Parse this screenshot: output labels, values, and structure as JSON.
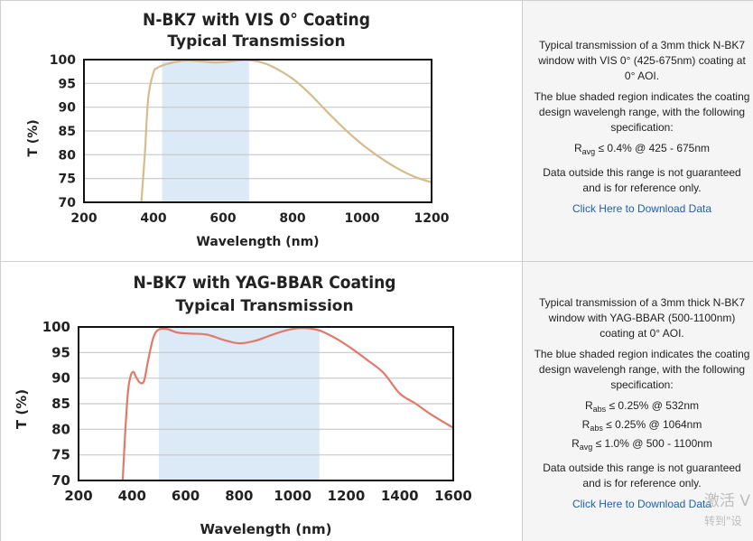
{
  "charts": [
    {
      "title_line1": "N-BK7 with VIS 0° Coating",
      "title_line2": "Typical Transmission",
      "info": {
        "para1": "Typical transmission of a 3mm thick N-BK7 window with VIS 0° (425-675nm) coating at 0° AOI.",
        "para2": "The blue shaded region indicates the coating design wavelengh range, with the following specification:",
        "specs": [
          {
            "main": "R",
            "sub": "avg",
            "rest": "≤ 0.4% @ 425 - 675nm"
          }
        ],
        "para3": "Data outside this range is not guaranteed and is for reference only.",
        "link": "Click Here to Download Data"
      }
    },
    {
      "title_line1": "N-BK7 with YAG-BBAR Coating",
      "title_line2": "Typical Transmission",
      "info": {
        "para1": "Typical transmission of a 3mm thick N-BK7 window with YAG-BBAR (500-1100nm) coating at 0° AOI.",
        "para2": "The blue shaded region indicates the coating design wavelengh range, with the following specification:",
        "specs": [
          {
            "main": "R",
            "sub": "abs",
            "rest": "≤ 0.25% @ 532nm"
          },
          {
            "main": "R",
            "sub": "abs",
            "rest": "≤ 0.25% @ 1064nm"
          },
          {
            "main": "R",
            "sub": "avg",
            "rest": "≤ 1.0% @ 500 - 1100nm"
          }
        ],
        "para3": "Data outside this range is not guaranteed and is for reference only.",
        "link": "Click Here to Download Data"
      }
    }
  ],
  "watermark": {
    "line1": "激活 V",
    "line2": "转到\"设"
  },
  "chart_data": [
    {
      "type": "line",
      "title": "N-BK7 with VIS 0° Coating Typical Transmission",
      "xlabel": "Wavelength (nm)",
      "ylabel": "T (%)",
      "xlim": [
        200,
        1200
      ],
      "ylim": [
        70,
        100
      ],
      "xticks": [
        200,
        400,
        600,
        800,
        1000,
        1200
      ],
      "yticks": [
        70,
        75,
        80,
        85,
        90,
        95,
        100
      ],
      "grid": "horizontal",
      "shaded_range": [
        425,
        675
      ],
      "shade_color": "#dce9f6",
      "line_color": "#d6bb8c",
      "x": [
        365,
        375,
        385,
        400,
        410,
        420,
        440,
        470,
        500,
        540,
        580,
        620,
        660,
        700,
        740,
        800,
        850,
        900,
        950,
        1000,
        1050,
        1100,
        1150,
        1200
      ],
      "y": [
        70,
        80,
        92,
        97.3,
        98.2,
        98.6,
        99.1,
        99.6,
        99.8,
        99.6,
        99.4,
        99.6,
        99.9,
        99.6,
        98.6,
        96.0,
        92.8,
        89.0,
        85.4,
        82.2,
        79.5,
        77.2,
        75.4,
        74.2
      ]
    },
    {
      "type": "line",
      "title": "N-BK7 with YAG-BBAR Coating Typical Transmission",
      "xlabel": "Wavelength (nm)",
      "ylabel": "T (%)",
      "xlim": [
        200,
        1600
      ],
      "ylim": [
        70,
        100
      ],
      "xticks": [
        200,
        400,
        600,
        800,
        1000,
        1200,
        1400,
        1600
      ],
      "yticks": [
        70,
        75,
        80,
        85,
        90,
        95,
        100
      ],
      "grid": "horizontal",
      "shaded_range": [
        500,
        1100
      ],
      "shade_color": "#dce9f6",
      "line_color": "#e07a6a",
      "x": [
        365,
        375,
        385,
        395,
        405,
        415,
        430,
        445,
        460,
        480,
        500,
        530,
        570,
        620,
        680,
        740,
        800,
        860,
        920,
        980,
        1040,
        1100,
        1160,
        1220,
        1280,
        1340,
        1400,
        1460,
        1520,
        1600
      ],
      "y": [
        70,
        80,
        87.5,
        90.5,
        91.2,
        90.2,
        89.1,
        89.5,
        93.5,
        98.0,
        99.5,
        99.6,
        98.9,
        98.7,
        98.5,
        97.5,
        96.8,
        97.3,
        98.4,
        99.4,
        99.8,
        99.3,
        97.8,
        95.8,
        93.5,
        91.0,
        87.0,
        85.0,
        82.8,
        80.3
      ]
    }
  ]
}
